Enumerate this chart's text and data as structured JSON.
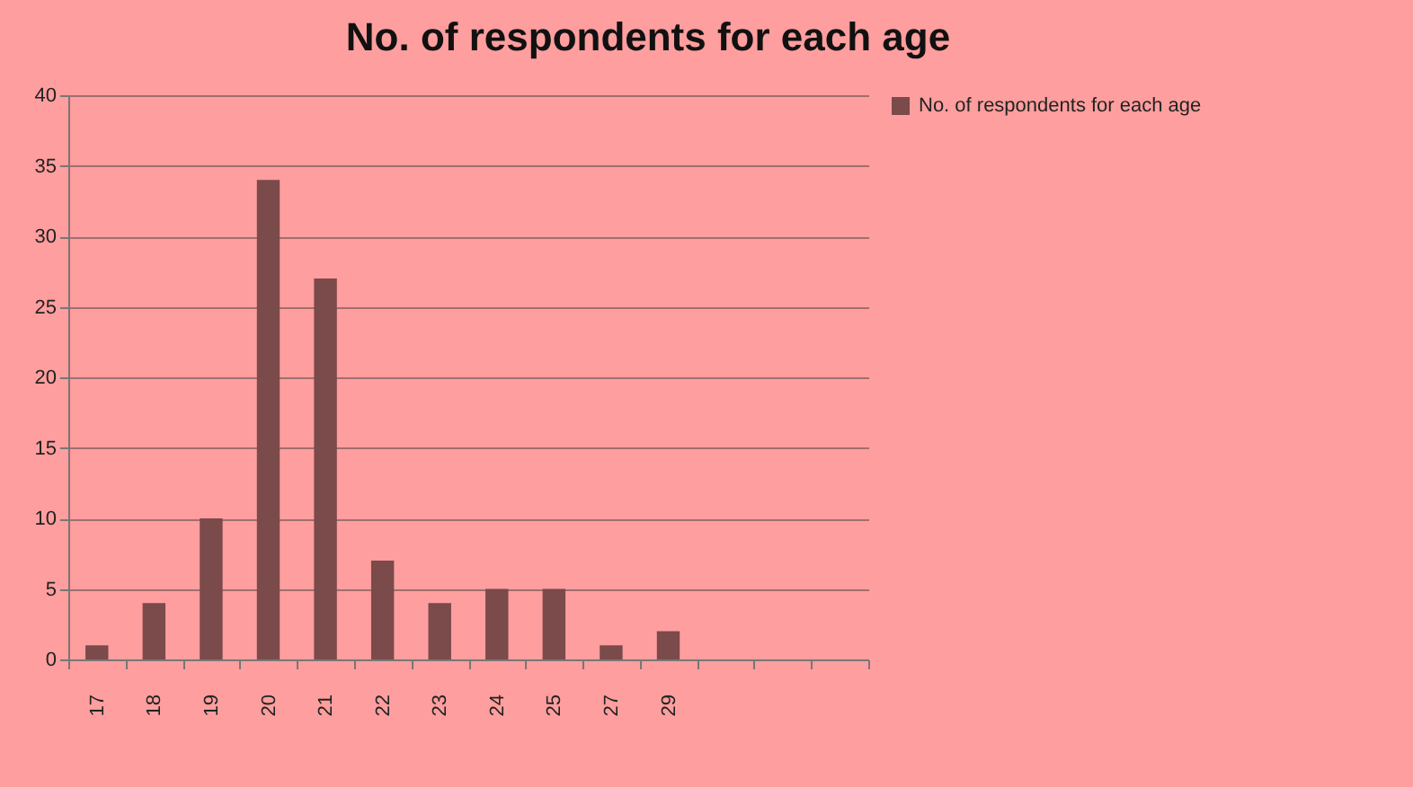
{
  "chart_data": {
    "type": "bar",
    "title": "No. of respondents for each age",
    "categories": [
      "17",
      "18",
      "19",
      "20",
      "21",
      "22",
      "23",
      "24",
      "25",
      "27",
      "29",
      null,
      null,
      null
    ],
    "series": [
      {
        "name": "No. of respondents for each age",
        "color": "#7b4a4a",
        "values": [
          1,
          4,
          10,
          34,
          27,
          7,
          4,
          5,
          5,
          1,
          2,
          null,
          null,
          null
        ]
      }
    ],
    "ylim": [
      0,
      40
    ],
    "yticks": [
      0,
      5,
      10,
      15,
      20,
      25,
      30,
      35,
      40
    ],
    "grid": "y",
    "legend": "right"
  }
}
